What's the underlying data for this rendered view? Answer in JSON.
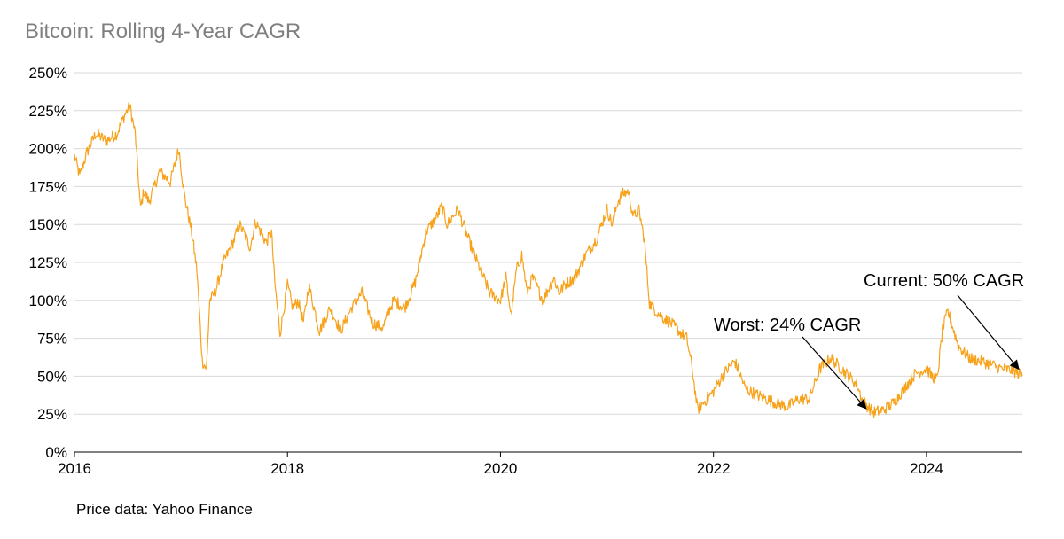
{
  "title": "Bitcoin: Rolling 4-Year CAGR",
  "source": "Price data: Yahoo Finance",
  "colors": {
    "line": "#F7A21B",
    "grid": "#d9d9d9",
    "title": "#7f7f7f",
    "text": "#000000"
  },
  "chart_data": {
    "type": "line",
    "title": "Bitcoin: Rolling 4-Year CAGR",
    "xlabel": "",
    "ylabel": "",
    "xlim": [
      2016.0,
      2024.9
    ],
    "ylim": [
      0,
      250
    ],
    "grid": "horizontal",
    "y_ticks": [
      {
        "value": 0,
        "label": "0%"
      },
      {
        "value": 25,
        "label": "25%"
      },
      {
        "value": 50,
        "label": "50%"
      },
      {
        "value": 75,
        "label": "75%"
      },
      {
        "value": 100,
        "label": "100%"
      },
      {
        "value": 125,
        "label": "125%"
      },
      {
        "value": 150,
        "label": "150%"
      },
      {
        "value": 175,
        "label": "175%"
      },
      {
        "value": 200,
        "label": "200%"
      },
      {
        "value": 225,
        "label": "225%"
      },
      {
        "value": 250,
        "label": "250%"
      }
    ],
    "x_ticks": [
      {
        "value": 2016,
        "label": "2016"
      },
      {
        "value": 2018,
        "label": "2018"
      },
      {
        "value": 2020,
        "label": "2020"
      },
      {
        "value": 2022,
        "label": "2022"
      },
      {
        "value": 2024,
        "label": "2024"
      }
    ],
    "series": [
      {
        "x": [
          2016.0,
          2016.05,
          2016.12,
          2016.2,
          2016.3,
          2016.4,
          2016.47,
          2016.52,
          2016.57,
          2016.62,
          2016.65,
          2016.7,
          2016.8,
          2016.9,
          2016.98,
          2017.03,
          2017.1,
          2017.15,
          2017.2,
          2017.24,
          2017.27,
          2017.32,
          2017.4,
          2017.5,
          2017.55,
          2017.6,
          2017.65,
          2017.7,
          2017.75,
          2017.8,
          2017.85,
          2017.88,
          2017.93,
          2018.0,
          2018.05,
          2018.1,
          2018.15,
          2018.2,
          2018.3,
          2018.4,
          2018.5,
          2018.6,
          2018.7,
          2018.8,
          2018.9,
          2018.95,
          2019.0,
          2019.1,
          2019.2,
          2019.3,
          2019.4,
          2019.45,
          2019.5,
          2019.6,
          2019.7,
          2019.8,
          2019.9,
          2020.0,
          2020.05,
          2020.1,
          2020.15,
          2020.2,
          2020.25,
          2020.3,
          2020.4,
          2020.5,
          2020.55,
          2020.6,
          2020.7,
          2020.8,
          2020.9,
          2021.0,
          2021.05,
          2021.1,
          2021.15,
          2021.2,
          2021.25,
          2021.3,
          2021.35,
          2021.4,
          2021.5,
          2021.6,
          2021.7,
          2021.75,
          2021.8,
          2021.85,
          2021.9,
          2022.0,
          2022.1,
          2022.2,
          2022.3,
          2022.4,
          2022.5,
          2022.6,
          2022.7,
          2022.8,
          2022.9,
          2023.0,
          2023.1,
          2023.2,
          2023.3,
          2023.35,
          2023.4,
          2023.45,
          2023.5,
          2023.6,
          2023.7,
          2023.8,
          2023.9,
          2024.0,
          2024.05,
          2024.1,
          2024.15,
          2024.2,
          2024.3,
          2024.4,
          2024.5,
          2024.6,
          2024.7,
          2024.8,
          2024.86,
          2024.9
        ],
        "values": [
          195,
          182,
          198,
          210,
          205,
          210,
          222,
          228,
          210,
          160,
          172,
          165,
          185,
          178,
          200,
          170,
          145,
          120,
          60,
          55,
          100,
          105,
          125,
          140,
          150,
          143,
          135,
          152,
          145,
          138,
          145,
          112,
          78,
          110,
          95,
          100,
          85,
          110,
          80,
          95,
          80,
          95,
          105,
          85,
          82,
          93,
          100,
          95,
          112,
          145,
          155,
          162,
          150,
          160,
          140,
          122,
          105,
          100,
          115,
          90,
          120,
          130,
          105,
          115,
          100,
          115,
          105,
          110,
          115,
          130,
          140,
          160,
          150,
          165,
          170,
          172,
          155,
          160,
          140,
          98,
          90,
          85,
          78,
          75,
          55,
          28,
          32,
          40,
          52,
          60,
          42,
          38,
          35,
          32,
          30,
          35,
          35,
          55,
          62,
          55,
          48,
          44,
          34,
          30,
          26,
          28,
          33,
          43,
          52,
          55,
          50,
          48,
          80,
          93,
          70,
          62,
          60,
          58,
          55,
          54,
          52,
          50
        ]
      }
    ],
    "annotations": [
      {
        "text": "Worst: 24% CAGR",
        "x": 2023.45,
        "y": 24
      },
      {
        "text": "Current: 50% CAGR",
        "x": 2024.9,
        "y": 50
      }
    ]
  }
}
